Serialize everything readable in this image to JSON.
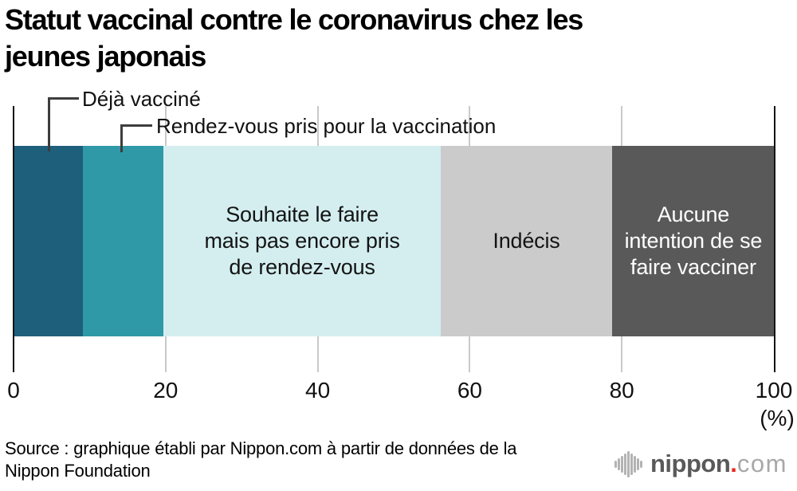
{
  "title": "Statut vaccinal contre le coronavirus chez les\njeunes japonais",
  "chart_data": {
    "type": "bar",
    "variant": "horizontal-stacked-single-bar",
    "unit": "%",
    "xlim": [
      0,
      100
    ],
    "x_ticks": [
      "0",
      "20",
      "40",
      "60",
      "80",
      "100"
    ],
    "axis_unit_label": "(%)",
    "gridlines_at": [
      20,
      40,
      60,
      80
    ],
    "segments": [
      {
        "label": "Déjà vacciné",
        "value": 9.0,
        "color": "#1e5f7b",
        "text_color": "#141414",
        "label_style": "callout"
      },
      {
        "label": "Rendez-vous pris pour la vaccination",
        "value": 10.6,
        "color": "#2f99a7",
        "text_color": "#141414",
        "label_style": "callout"
      },
      {
        "label": "Souhaite le faire\nmais pas encore pris\nde rendez-vous",
        "value": 36.5,
        "color": "#d4eef0",
        "text_color": "#141414",
        "label_style": "inside"
      },
      {
        "label": "Indécis",
        "value": 22.5,
        "color": "#cbcbcb",
        "text_color": "#141414",
        "label_style": "inside"
      },
      {
        "label": "Aucune\nintention de se\nfaire vacciner",
        "value": 21.4,
        "color": "#595959",
        "text_color": "#ffffff",
        "label_style": "inside"
      }
    ]
  },
  "source": {
    "text": "Source : graphique établi par Nippon.com à partir de données de la\nNippon Foundation"
  },
  "logo": {
    "brand": "nippon",
    "dot": ".",
    "tld": "com"
  }
}
